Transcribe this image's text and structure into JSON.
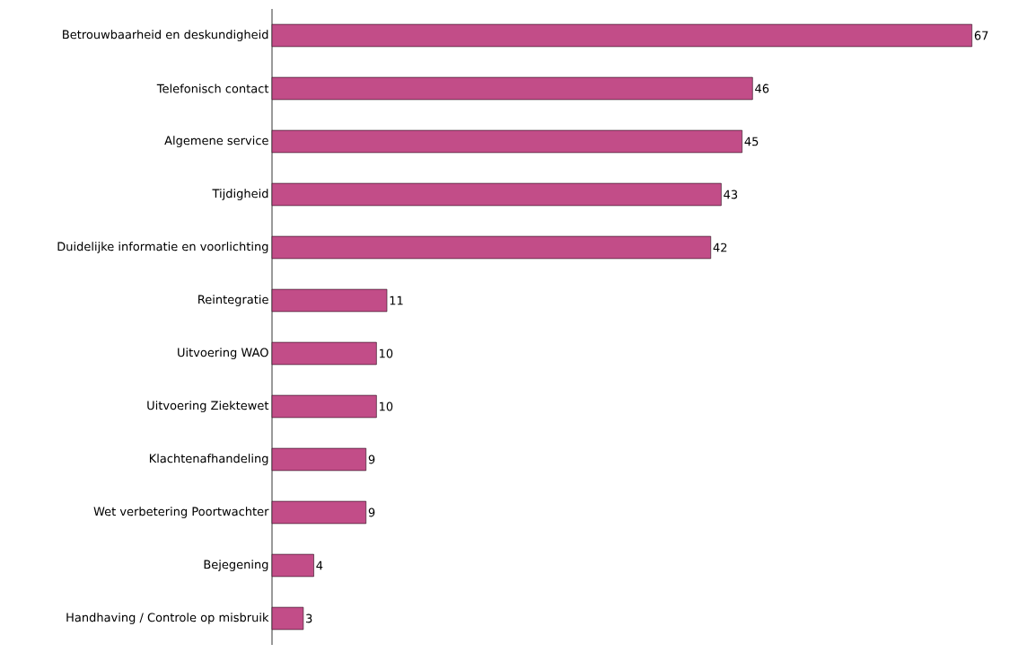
{
  "chart_data": {
    "type": "bar",
    "orientation": "horizontal",
    "data_labels": true,
    "color": "#c24d88",
    "categories": [
      "Betrouwbaarheid en deskundigheid",
      "Telefonisch contact",
      "Algemene service",
      "Tijdigheid",
      "Duidelijke informatie en voorlichting",
      "Reintegratie",
      "Uitvoering WAO",
      "Uitvoering Ziektewet",
      "Klachtenafhandeling",
      "Wet verbetering Poortwachter",
      "Bejegening",
      "Handhaving / Controle op misbruik"
    ],
    "values": [
      67,
      46,
      45,
      43,
      42,
      11,
      10,
      10,
      9,
      9,
      4,
      3
    ]
  }
}
